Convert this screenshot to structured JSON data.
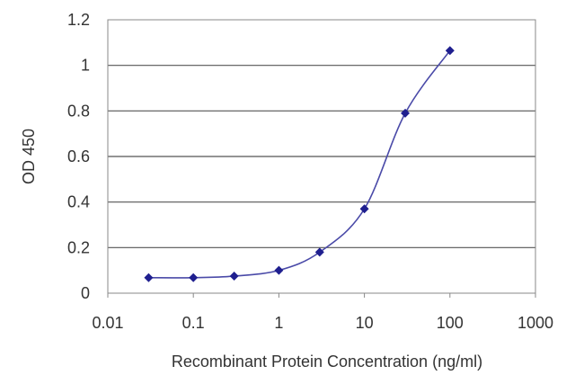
{
  "chart_data": {
    "type": "scatter",
    "xlabel": "Recombinant Protein Concentration (ng/ml)",
    "ylabel": "OD 450",
    "xscale": "log",
    "xlim": [
      0.01,
      1000
    ],
    "ylim": [
      0,
      1.2
    ],
    "x_tick_labels": [
      "0.01",
      "0.1",
      "1",
      "10",
      "100",
      "1000"
    ],
    "x_tick_values": [
      0.01,
      0.1,
      1,
      10,
      100,
      1000
    ],
    "y_tick_labels": [
      "0",
      "0.2",
      "0.4",
      "0.6",
      "0.8",
      "1",
      "1.2"
    ],
    "y_tick_values": [
      0,
      0.2,
      0.4,
      0.6,
      0.8,
      1,
      1.2
    ],
    "grid": "horizontal",
    "legend": "none",
    "series": [
      {
        "x": [
          0.03,
          0.1,
          0.3,
          1,
          3,
          10,
          30,
          100
        ],
        "y": [
          0.068,
          0.068,
          0.075,
          0.1,
          0.18,
          0.37,
          0.79,
          1.065
        ],
        "marker": "diamond",
        "color": "#1f1f8f",
        "line_color": "#4a4aa8"
      }
    ]
  }
}
